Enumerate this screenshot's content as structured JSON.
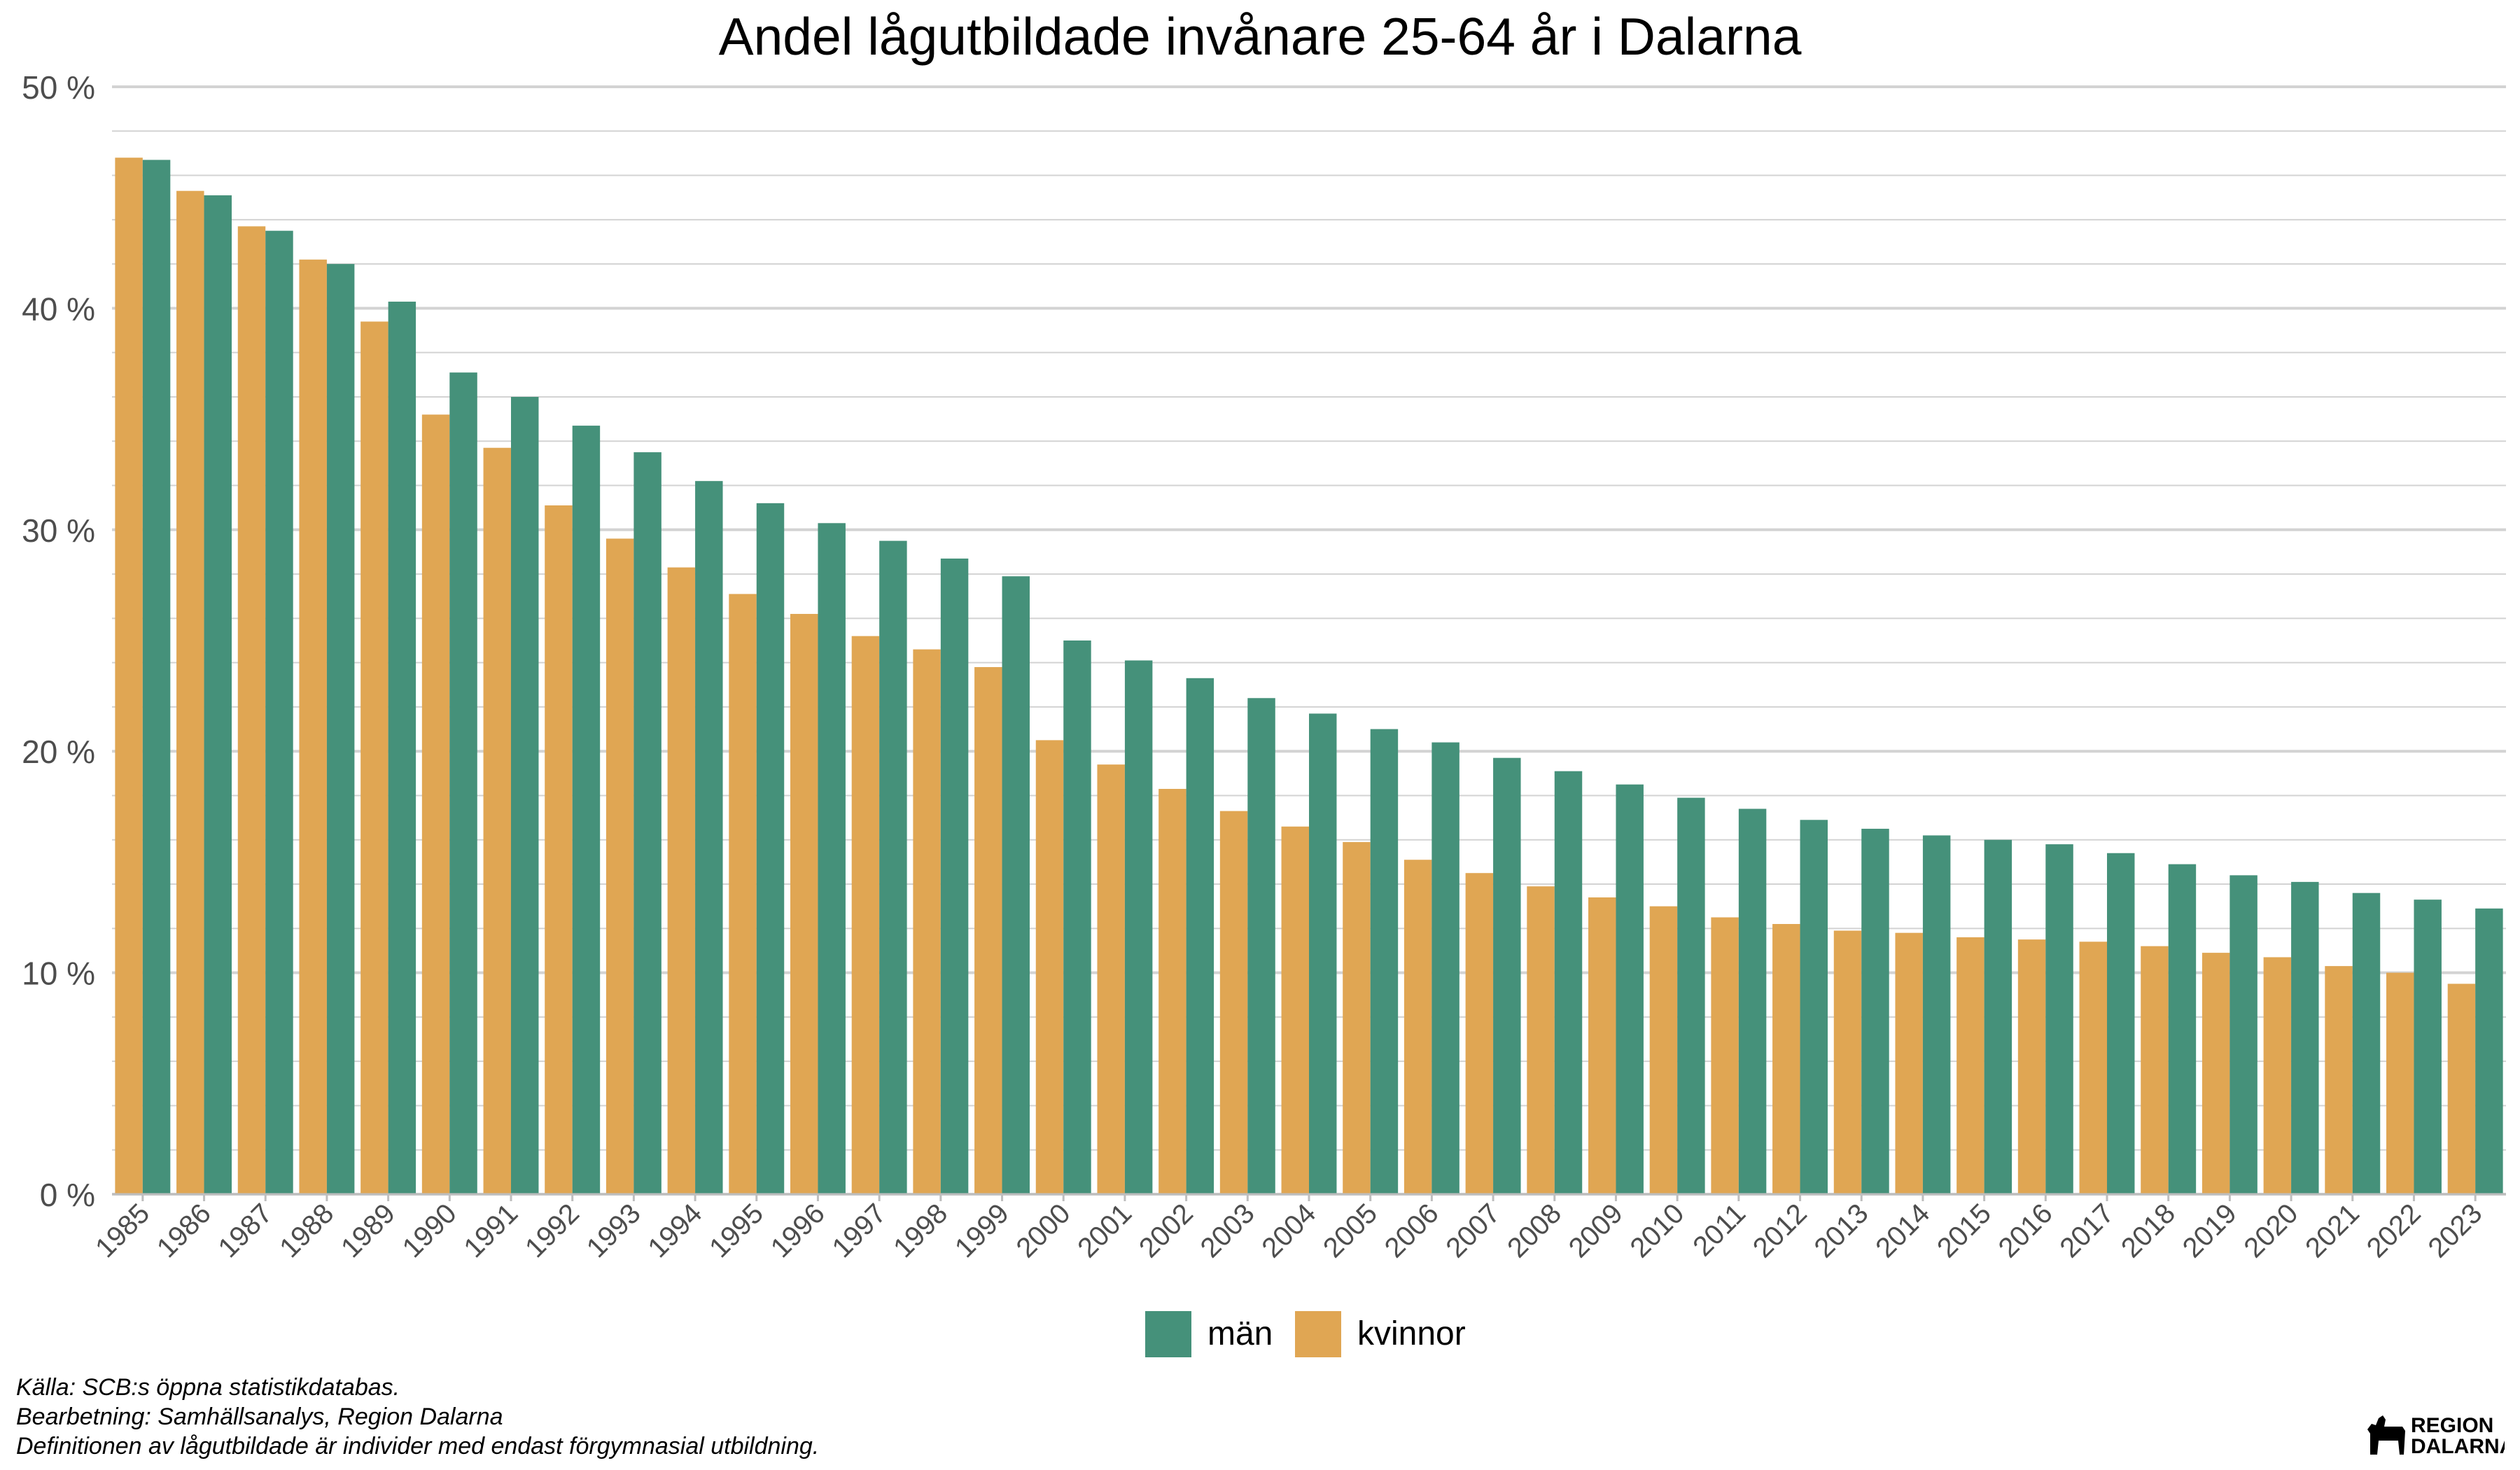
{
  "chart_data": {
    "type": "bar",
    "title": "Andel lågutbildade invånare 25-64 år i Dalarna",
    "xlabel": "",
    "ylabel": "",
    "ylim": [
      0,
      50
    ],
    "y_ticks": [
      "0 %",
      "10 %",
      "20 %",
      "30 %",
      "40 %",
      "50 %"
    ],
    "grid": "horizontal",
    "legend_position": "bottom-center",
    "categories": [
      "1985",
      "1986",
      "1987",
      "1988",
      "1989",
      "1990",
      "1991",
      "1992",
      "1993",
      "1994",
      "1995",
      "1996",
      "1997",
      "1998",
      "1999",
      "2000",
      "2001",
      "2002",
      "2003",
      "2004",
      "2005",
      "2006",
      "2007",
      "2008",
      "2009",
      "2010",
      "2011",
      "2012",
      "2013",
      "2014",
      "2015",
      "2016",
      "2017",
      "2018",
      "2019",
      "2020",
      "2021",
      "2022",
      "2023"
    ],
    "series": [
      {
        "name": "kvinnor",
        "color": "#E0A653",
        "values": [
          46.8,
          45.3,
          43.7,
          42.2,
          39.4,
          35.2,
          33.7,
          31.1,
          29.6,
          28.3,
          27.1,
          26.2,
          25.2,
          24.6,
          23.8,
          20.5,
          19.4,
          18.3,
          17.3,
          16.6,
          15.9,
          15.1,
          14.5,
          13.9,
          13.4,
          13.0,
          12.5,
          12.2,
          11.9,
          11.8,
          11.6,
          11.5,
          11.4,
          11.2,
          10.9,
          10.7,
          10.3,
          10.0,
          9.5
        ]
      },
      {
        "name": "män",
        "color": "#45917A",
        "values": [
          46.7,
          45.1,
          43.5,
          42.0,
          40.3,
          37.1,
          36.0,
          34.7,
          33.5,
          32.2,
          31.2,
          30.3,
          29.5,
          28.7,
          27.9,
          25.0,
          24.1,
          23.3,
          22.4,
          21.7,
          21.0,
          20.4,
          19.7,
          19.1,
          18.5,
          17.9,
          17.4,
          16.9,
          16.5,
          16.2,
          16.0,
          15.8,
          15.4,
          14.9,
          14.4,
          14.1,
          13.6,
          13.3,
          12.9
        ]
      }
    ],
    "legend": [
      "män",
      "kvinnor"
    ],
    "legend_colors": [
      "#45917A",
      "#E0A653"
    ]
  },
  "captions": {
    "source": "Källa: SCB:s öppna statistikdatabas.",
    "processing": "Bearbetning: Samhällsanalys, Region Dalarna",
    "definition": "Definitionen av lågutbildade är individer med endast förgymnasial utbildning."
  },
  "logo": {
    "line1": "REGION",
    "line2": "DALARNA",
    "icon": "dala-horse-icon"
  }
}
